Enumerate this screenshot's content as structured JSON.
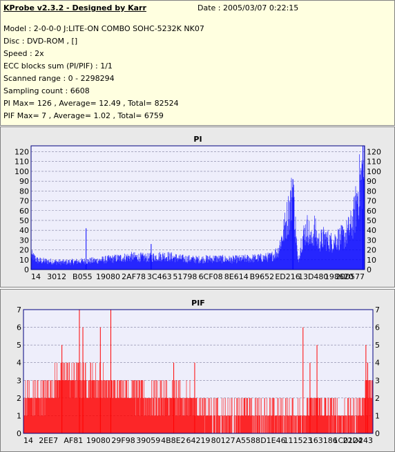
{
  "header": {
    "title": "KProbe v2.3.2 - Designed by Karr",
    "date": "Date : 2005/03/07 0:22:15",
    "lines": [
      "Model : 2-0-0-0 J:LITE-ON COMBO SOHC-5232K NK07",
      "Disc : DVD-ROM ,  []",
      "Speed : 2x",
      "ECC blocks sum (PI/PIF) : 1/1",
      "Scanned range : 0 - 2298294",
      "Sampling count : 6608",
      "PI Max= 126 , Average= 12.49 , Total= 82524",
      "PIF Max= 7 , Average= 1.02 , Total= 6759"
    ]
  },
  "colors": {
    "pi": "#0000ff",
    "pif": "#ff0000",
    "plot_bg": "#eeeefb",
    "grid": "#8080a0"
  },
  "chart_data": [
    {
      "type": "bar",
      "title": "PI",
      "ylim": [
        0,
        126
      ],
      "y_ticks": [
        0,
        10,
        20,
        30,
        40,
        50,
        60,
        70,
        80,
        90,
        100,
        110,
        120
      ],
      "x_tick_labels": [
        "14",
        "3012",
        "B055",
        "19080",
        "2AF78",
        "3C463",
        "51798",
        "6CF08",
        "8E614",
        "B9652",
        "ED216",
        "13D480",
        "198620",
        "200577"
      ],
      "grid": true,
      "profile_x": [
        0,
        0.02,
        0.05,
        0.1,
        0.15,
        0.2,
        0.25,
        0.3,
        0.35,
        0.4,
        0.45,
        0.5,
        0.55,
        0.6,
        0.65,
        0.7,
        0.72,
        0.74,
        0.76,
        0.78,
        0.785,
        0.8,
        0.81,
        0.82,
        0.83,
        0.84,
        0.85,
        0.86,
        0.88,
        0.9,
        0.92,
        0.94,
        0.96,
        0.97,
        0.98,
        0.99,
        1.0
      ],
      "profile_y": [
        16,
        10,
        9,
        8,
        9,
        10,
        12,
        14,
        13,
        15,
        12,
        11,
        12,
        11,
        12,
        13,
        14,
        20,
        45,
        75,
        88,
        8,
        30,
        40,
        46,
        30,
        45,
        30,
        35,
        30,
        34,
        36,
        48,
        60,
        85,
        100,
        110
      ],
      "spikes": [
        {
          "x": 0.165,
          "y": 42
        },
        {
          "x": 0.36,
          "y": 26
        },
        {
          "x": 0.785,
          "y": 92
        },
        {
          "x": 0.995,
          "y": 126
        }
      ]
    },
    {
      "type": "bar",
      "title": "PIF",
      "ylim": [
        0,
        7
      ],
      "y_ticks": [
        0,
        1,
        2,
        3,
        4,
        5,
        6,
        7
      ],
      "x_tick_labels": [
        "14",
        "2EE7",
        "AF81",
        "19080",
        "29F98",
        "39059",
        "4B8E2",
        "64219",
        "80127",
        "A5588",
        "D1E46",
        "111523",
        "163186",
        "1C0124",
        "22D243"
      ],
      "grid": true,
      "profile_x": [
        0,
        0.05,
        0.08,
        0.1,
        0.12,
        0.14,
        0.2,
        0.25,
        0.3,
        0.35,
        0.4,
        0.45,
        0.5,
        0.55,
        0.6,
        0.62,
        0.64,
        0.66,
        0.7,
        0.75,
        0.78,
        0.8,
        0.82,
        0.85,
        0.88,
        0.9,
        0.92,
        0.95,
        0.98,
        1.0
      ],
      "profile_y": [
        2,
        2,
        2.5,
        3,
        3.5,
        3,
        3,
        2.5,
        2.5,
        2,
        2,
        2,
        1.5,
        1,
        1,
        1,
        1.5,
        1,
        1,
        1,
        1,
        1,
        1.5,
        1.5,
        1,
        1,
        1,
        1,
        2,
        2.5
      ],
      "spikes": [
        {
          "x": 0.16,
          "y": 7
        },
        {
          "x": 0.25,
          "y": 7
        },
        {
          "x": 0.17,
          "y": 6
        },
        {
          "x": 0.22,
          "y": 6
        },
        {
          "x": 0.11,
          "y": 5
        },
        {
          "x": 0.43,
          "y": 4
        },
        {
          "x": 0.49,
          "y": 4
        },
        {
          "x": 0.82,
          "y": 4
        },
        {
          "x": 0.8,
          "y": 6
        },
        {
          "x": 0.84,
          "y": 5
        },
        {
          "x": 0.98,
          "y": 5
        },
        {
          "x": 0.985,
          "y": 4
        }
      ]
    }
  ]
}
